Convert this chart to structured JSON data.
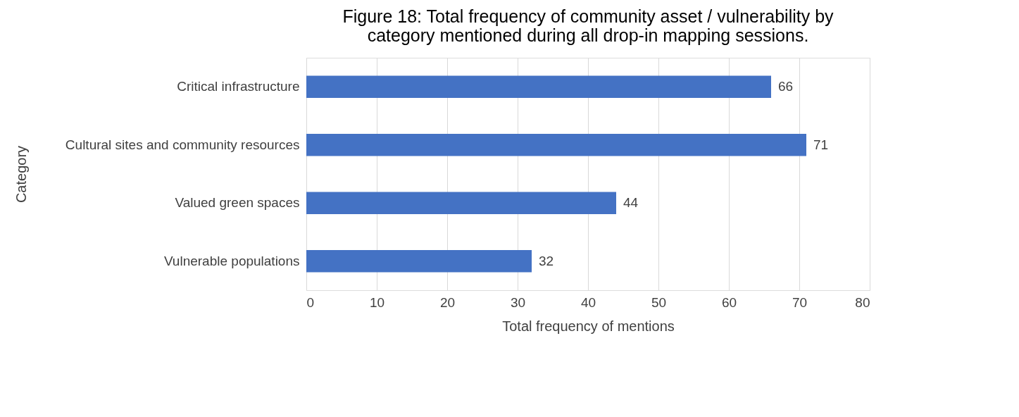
{
  "chart_data": {
    "type": "bar",
    "orientation": "horizontal",
    "title": "Figure 18: Total frequency of community asset / vulnerability by category mentioned during all drop-in mapping sessions.",
    "categories": [
      "Critical infrastructure",
      "Cultural sites and community resources",
      "Valued green spaces",
      "Vulnerable populations"
    ],
    "values": [
      66,
      71,
      44,
      32
    ],
    "color": "#4472c4",
    "xlim": [
      0,
      80
    ],
    "xticks": [
      0,
      10,
      20,
      30,
      40,
      50,
      60,
      70,
      80
    ],
    "xlabel": "Total frequency of mentions",
    "ylabel": "Category",
    "grid": "x",
    "data_labels": true
  }
}
